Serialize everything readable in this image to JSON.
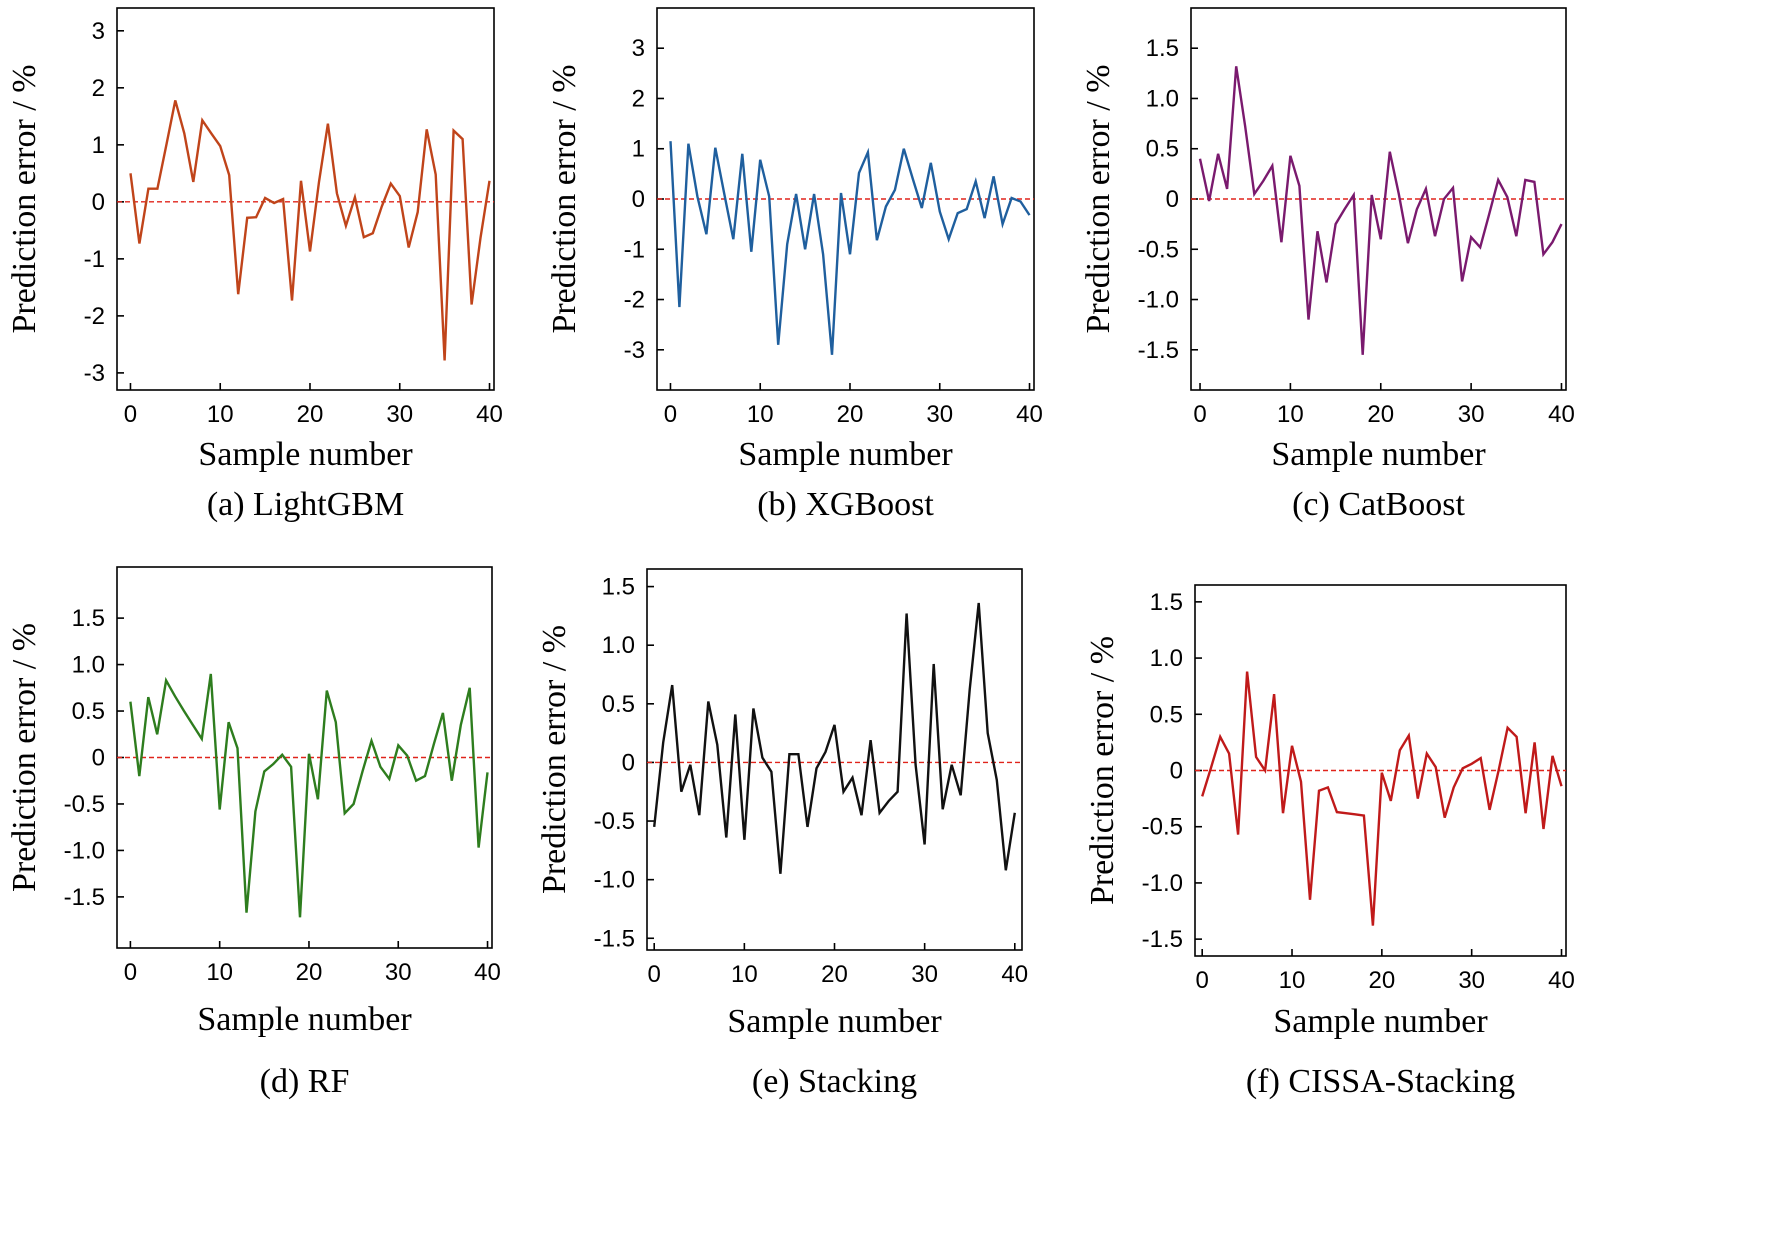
{
  "figure": {
    "background": "#ffffff",
    "zero_line_color": "#e0241b"
  },
  "chart_data": [
    {
      "type": "line",
      "caption": "(a) LightGBM",
      "xlabel": "Sample number",
      "ylabel": "Prediction error / %",
      "color": "#c0441a",
      "xlim": [
        -1.5,
        40.5
      ],
      "ylim": [
        -3.3,
        3.4
      ],
      "xticks": [
        0,
        10,
        20,
        30,
        40
      ],
      "xtick_labels": [
        "0",
        "10",
        "20",
        "30",
        "40"
      ],
      "yticks": [
        -3,
        -2,
        -1,
        0,
        1,
        2,
        3
      ],
      "ytick_labels": [
        "-3",
        "-2",
        "-1",
        "0",
        "1",
        "2",
        "3"
      ],
      "x": [
        0,
        1,
        2,
        3,
        4,
        5,
        6,
        7,
        8,
        9,
        10,
        11,
        12,
        13,
        14,
        15,
        16,
        17,
        18,
        19,
        20,
        21,
        22,
        23,
        24,
        25,
        26,
        27,
        28,
        29,
        30,
        31,
        32,
        33,
        34,
        35,
        36,
        37,
        38,
        39,
        40
      ],
      "values": [
        0.5,
        -0.73,
        0.23,
        0.23,
        1.0,
        1.78,
        1.2,
        0.35,
        1.43,
        1.2,
        0.98,
        0.47,
        -1.62,
        -0.28,
        -0.27,
        0.07,
        -0.02,
        0.05,
        -1.73,
        0.37,
        -0.87,
        0.35,
        1.37,
        0.15,
        -0.42,
        0.08,
        -0.62,
        -0.55,
        -0.08,
        0.32,
        0.1,
        -0.8,
        -0.18,
        1.27,
        0.48,
        -2.78,
        1.25,
        1.1,
        -1.8,
        -0.63,
        0.37
      ]
    },
    {
      "type": "line",
      "caption": "(b) XGBoost",
      "xlabel": "Sample number",
      "ylabel": "Prediction error / %",
      "color": "#1f5f9e",
      "xlim": [
        -1.5,
        40.5
      ],
      "ylim": [
        -3.8,
        3.8
      ],
      "xticks": [
        0,
        10,
        20,
        30,
        40
      ],
      "xtick_labels": [
        "0",
        "10",
        "20",
        "30",
        "40"
      ],
      "yticks": [
        -3,
        -2,
        -1,
        0,
        1,
        2,
        3
      ],
      "ytick_labels": [
        "-3",
        "-2",
        "-1",
        "0",
        "1",
        "2",
        "3"
      ],
      "x": [
        0,
        1,
        2,
        3,
        4,
        5,
        6,
        7,
        8,
        9,
        10,
        11,
        12,
        13,
        14,
        15,
        16,
        17,
        18,
        19,
        20,
        21,
        22,
        23,
        24,
        25,
        26,
        27,
        28,
        29,
        30,
        31,
        32,
        33,
        34,
        35,
        36,
        37,
        38,
        39,
        40
      ],
      "values": [
        1.15,
        -2.15,
        1.1,
        0.05,
        -0.7,
        1.02,
        0.1,
        -0.8,
        0.9,
        -1.05,
        0.78,
        0.05,
        -2.9,
        -0.9,
        0.1,
        -1.0,
        0.1,
        -1.1,
        -3.1,
        0.12,
        -1.1,
        0.52,
        0.93,
        -0.82,
        -0.15,
        0.18,
        1.0,
        0.4,
        -0.18,
        0.72,
        -0.25,
        -0.8,
        -0.28,
        -0.2,
        0.35,
        -0.38,
        0.45,
        -0.5,
        0.02,
        -0.05,
        -0.32
      ]
    },
    {
      "type": "line",
      "caption": "(c) CatBoost",
      "xlabel": "Sample number",
      "ylabel": "Prediction error / %",
      "color": "#7a1a6e",
      "xlim": [
        -1.0,
        40.5
      ],
      "ylim": [
        -1.9,
        1.9
      ],
      "xticks": [
        0,
        10,
        20,
        30,
        40
      ],
      "xtick_labels": [
        "0",
        "10",
        "20",
        "30",
        "40"
      ],
      "yticks": [
        -1.5,
        -1.0,
        -0.5,
        0,
        0.5,
        1.0,
        1.5
      ],
      "ytick_labels": [
        "-1.5",
        "-1.0",
        "-0.5",
        "0",
        "0.5",
        "1.0",
        "1.5"
      ],
      "x": [
        0,
        1,
        2,
        3,
        4,
        5,
        6,
        7,
        8,
        9,
        10,
        11,
        12,
        13,
        14,
        15,
        16,
        17,
        18,
        19,
        20,
        21,
        22,
        23,
        24,
        25,
        26,
        27,
        28,
        29,
        30,
        31,
        32,
        33,
        34,
        35,
        36,
        37,
        38,
        39,
        40
      ],
      "values": [
        0.4,
        -0.02,
        0.45,
        0.1,
        1.32,
        0.72,
        0.05,
        0.18,
        0.33,
        -0.43,
        0.43,
        0.13,
        -1.2,
        -0.32,
        -0.83,
        -0.25,
        -0.1,
        0.04,
        -1.55,
        0.04,
        -0.4,
        0.47,
        0.05,
        -0.44,
        -0.1,
        0.1,
        -0.37,
        0.0,
        0.11,
        -0.82,
        -0.38,
        -0.48,
        -0.15,
        0.19,
        0.02,
        -0.37,
        0.19,
        0.17,
        -0.55,
        -0.43,
        -0.25
      ]
    },
    {
      "type": "line",
      "caption": "(d) RF",
      "xlabel": "Sample number",
      "ylabel": "Prediction error / %",
      "color": "#2e7d1e",
      "xlim": [
        -1.5,
        40.5
      ],
      "ylim": [
        -2.05,
        2.05
      ],
      "xticks": [
        0,
        10,
        20,
        30,
        40
      ],
      "xtick_labels": [
        "0",
        "10",
        "20",
        "30",
        "40"
      ],
      "yticks": [
        -1.5,
        -1.0,
        -0.5,
        0,
        0.5,
        1.0,
        1.5
      ],
      "ytick_labels": [
        "-1.5",
        "-1.0",
        "-0.5",
        "0",
        "0.5",
        "1.0",
        "1.5"
      ],
      "x": [
        0,
        1,
        2,
        3,
        4,
        5,
        6,
        7,
        8,
        9,
        10,
        11,
        12,
        13,
        14,
        15,
        16,
        17,
        18,
        19,
        20,
        21,
        22,
        23,
        24,
        25,
        26,
        27,
        28,
        29,
        30,
        31,
        32,
        33,
        34,
        35,
        36,
        37,
        38,
        39,
        40
      ],
      "values": [
        0.6,
        -0.2,
        0.65,
        0.25,
        0.83,
        0.66,
        0.5,
        0.35,
        0.2,
        0.9,
        -0.56,
        0.38,
        0.1,
        -1.67,
        -0.58,
        -0.15,
        -0.07,
        0.03,
        -0.1,
        -1.72,
        0.04,
        -0.45,
        0.72,
        0.38,
        -0.6,
        -0.5,
        -0.15,
        0.18,
        -0.1,
        -0.23,
        0.13,
        0.02,
        -0.25,
        -0.2,
        0.15,
        0.48,
        -0.25,
        0.35,
        0.75,
        -0.97,
        -0.16
      ]
    },
    {
      "type": "line",
      "caption": "(e) Stacking",
      "xlabel": "Sample number",
      "ylabel": "Prediction error / %",
      "color": "#111111",
      "xlim": [
        -0.8,
        40.8
      ],
      "ylim": [
        -1.6,
        1.65
      ],
      "xticks": [
        0,
        10,
        20,
        30,
        40
      ],
      "xtick_labels": [
        "0",
        "10",
        "20",
        "30",
        "40"
      ],
      "yticks": [
        -1.5,
        -1.0,
        -0.5,
        0,
        0.5,
        1.0,
        1.5
      ],
      "ytick_labels": [
        "-1.5",
        "-1.0",
        "-0.5",
        "0",
        "0.5",
        "1.0",
        "1.5"
      ],
      "x": [
        0,
        1,
        2,
        3,
        4,
        5,
        6,
        7,
        8,
        9,
        10,
        11,
        12,
        13,
        14,
        15,
        16,
        17,
        18,
        19,
        20,
        21,
        22,
        23,
        24,
        25,
        26,
        27,
        28,
        29,
        30,
        31,
        32,
        33,
        34,
        35,
        36,
        37,
        38,
        39,
        40
      ],
      "values": [
        -0.55,
        0.17,
        0.66,
        -0.25,
        -0.02,
        -0.45,
        0.52,
        0.15,
        -0.64,
        0.41,
        -0.66,
        0.46,
        0.04,
        -0.08,
        -0.95,
        0.07,
        0.07,
        -0.55,
        -0.05,
        0.09,
        0.32,
        -0.25,
        -0.13,
        -0.45,
        0.19,
        -0.43,
        -0.33,
        -0.25,
        1.27,
        -0.02,
        -0.7,
        0.84,
        -0.4,
        -0.02,
        -0.28,
        0.62,
        1.36,
        0.25,
        -0.15,
        -0.92,
        -0.43
      ]
    },
    {
      "type": "line",
      "caption": "(f) CISSA-Stacking",
      "xlabel": "Sample number",
      "ylabel": "Prediction error / %",
      "color": "#c01a1a",
      "xlim": [
        -0.8,
        40.5
      ],
      "ylim": [
        -1.65,
        1.65
      ],
      "xticks": [
        0,
        10,
        20,
        30,
        40
      ],
      "xtick_labels": [
        "0",
        "10",
        "20",
        "30",
        "40"
      ],
      "yticks": [
        -1.5,
        -1.0,
        -0.5,
        0,
        0.5,
        1.0,
        1.5
      ],
      "ytick_labels": [
        "-1.5",
        "-1.0",
        "-0.5",
        "0",
        "0.5",
        "1.0",
        "1.5"
      ],
      "x": [
        0,
        1,
        2,
        3,
        4,
        5,
        6,
        7,
        8,
        9,
        10,
        11,
        12,
        13,
        14,
        15,
        16,
        17,
        18,
        19,
        20,
        21,
        22,
        23,
        24,
        25,
        26,
        27,
        28,
        29,
        30,
        31,
        32,
        33,
        34,
        35,
        36,
        37,
        38,
        39,
        40
      ],
      "values": [
        -0.23,
        0.03,
        0.3,
        0.15,
        -0.57,
        0.88,
        0.12,
        0.0,
        0.68,
        -0.38,
        0.22,
        -0.1,
        -1.15,
        -0.18,
        -0.15,
        -0.37,
        -0.38,
        -0.39,
        -0.4,
        -1.38,
        -0.02,
        -0.27,
        0.18,
        0.31,
        -0.25,
        0.15,
        0.03,
        -0.42,
        -0.15,
        0.02,
        0.06,
        0.11,
        -0.35,
        0.0,
        0.38,
        0.3,
        -0.38,
        0.25,
        -0.52,
        0.13,
        -0.14
      ]
    }
  ]
}
